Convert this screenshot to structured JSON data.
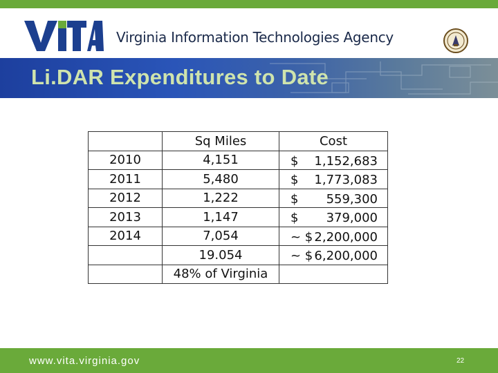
{
  "header": {
    "logo_text": "VITA",
    "agency_name": "Virginia Information Technologies Agency"
  },
  "slide": {
    "title": "Li.DAR Expenditures to Date"
  },
  "table": {
    "headers": [
      "",
      "Sq Miles",
      "Cost"
    ],
    "rows": [
      {
        "year": "2010",
        "sq_miles": "4,151",
        "cost_symbol": "$",
        "cost": "1,152,683"
      },
      {
        "year": "2011",
        "sq_miles": "5,480",
        "cost_symbol": "$",
        "cost": "1,773,083"
      },
      {
        "year": "2012",
        "sq_miles": "1,222",
        "cost_symbol": "$",
        "cost": "559,300"
      },
      {
        "year": "2013",
        "sq_miles": "1,147",
        "cost_symbol": "$",
        "cost": "379,000"
      },
      {
        "year": "2014",
        "sq_miles": "7,054",
        "cost_symbol": "~ $",
        "cost": "2,200,000"
      },
      {
        "year": "",
        "sq_miles": "19.054",
        "cost_symbol": "~ $",
        "cost": "6,200,000"
      },
      {
        "year": "",
        "sq_miles": "48% of Virginia",
        "cost_symbol": "",
        "cost": ""
      }
    ]
  },
  "footer": {
    "url": "www.vita.virginia.gov",
    "page_number": "22"
  },
  "colors": {
    "green_bar": "#6aaa3a",
    "title_band": "#1d3f9e",
    "title_text": "#cfe4ad",
    "logo_blue": "#1c3f8f"
  }
}
